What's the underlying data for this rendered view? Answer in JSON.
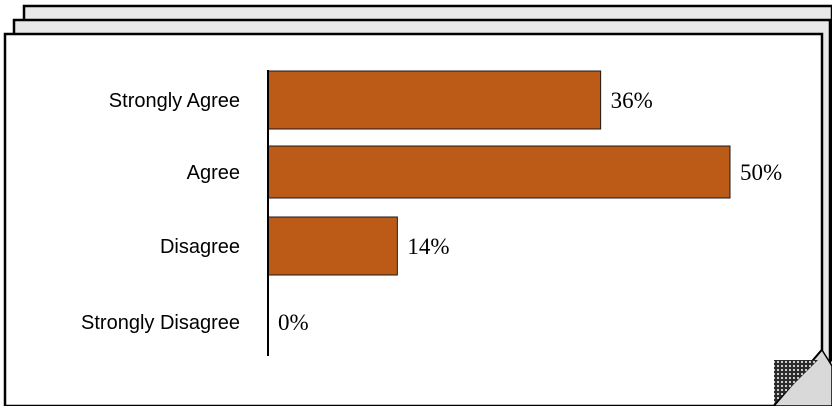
{
  "colors": {
    "bar_fill": "#BC5B17",
    "bar_stroke": "#1a1a1a",
    "page_fill": "#ffffff",
    "back_sheet_fill": "#e8e8e8",
    "curl_fill": "#d9d9d9"
  },
  "chart_data": {
    "type": "bar",
    "orientation": "horizontal",
    "categories": [
      "Strongly Agree",
      "Agree",
      "Disagree",
      "Strongly Disagree"
    ],
    "values": [
      36,
      50,
      14,
      0
    ],
    "value_labels": [
      "36%",
      "50%",
      "14%",
      "0%"
    ],
    "xlim": [
      0,
      50
    ],
    "grid": false,
    "legend": "none"
  }
}
